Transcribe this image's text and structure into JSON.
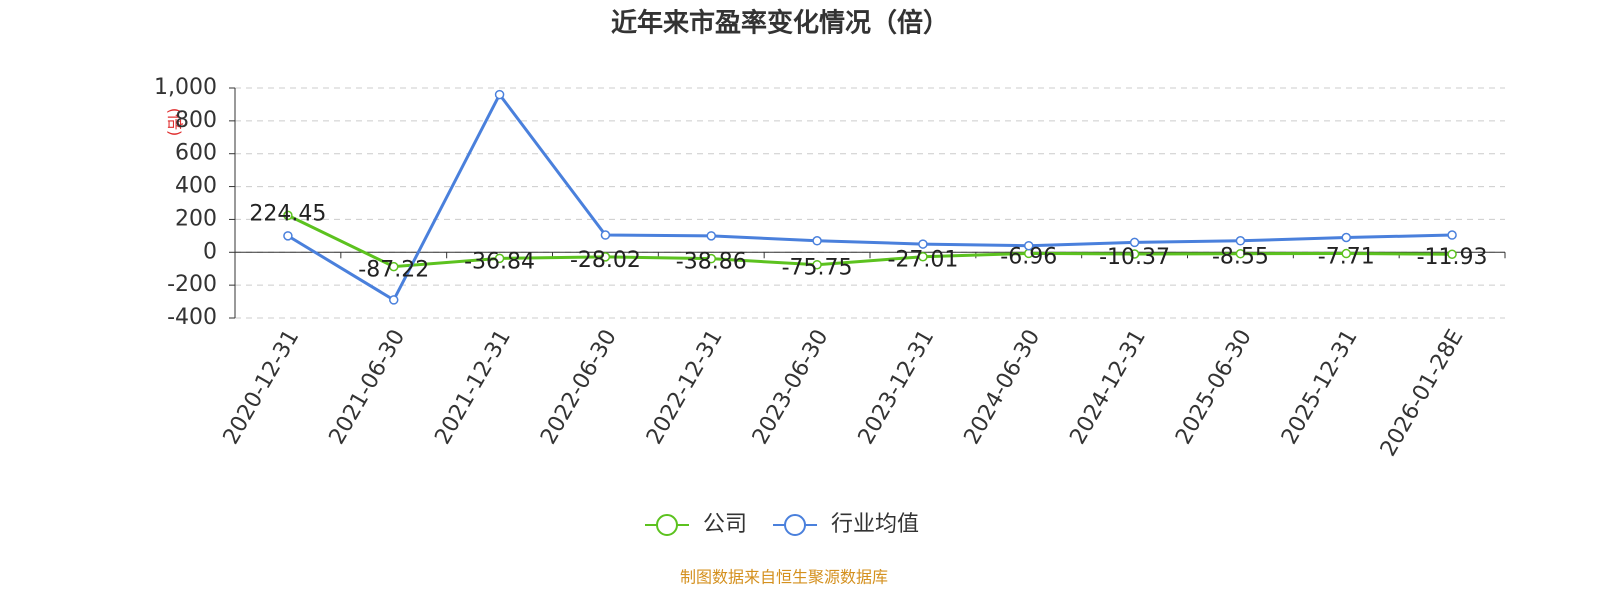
{
  "chart_data": {
    "type": "line",
    "title": "近年来市盈率变化情况（倍）",
    "y_label": "(倍)",
    "source": "制图数据来自恒生聚源数据库",
    "categories": [
      "2020-12-31",
      "2021-06-30",
      "2021-12-31",
      "2022-06-30",
      "2022-12-31",
      "2023-06-30",
      "2023-12-31",
      "2024-06-30",
      "2024-12-31",
      "2025-06-30",
      "2025-12-31",
      "2026-01-28E"
    ],
    "series": [
      {
        "name": "公司",
        "color": "#5cc21f",
        "values": [
          224.45,
          -87.22,
          -36.84,
          -28.02,
          -38.86,
          -75.75,
          -27.01,
          -6.96,
          -10.37,
          -8.55,
          -7.71,
          -11.93
        ],
        "show_labels": true
      },
      {
        "name": "行业均值",
        "color": "#4a80dc",
        "values": [
          100,
          -290,
          960,
          105,
          100,
          70,
          50,
          40,
          60,
          70,
          90,
          105
        ],
        "show_labels": false
      }
    ],
    "ylim": [
      -400,
      1000
    ],
    "yticks": [
      -400,
      -200,
      0,
      200,
      400,
      600,
      800,
      {
        "value": 1000,
        "label": "1,000"
      }
    ],
    "grid": true
  }
}
